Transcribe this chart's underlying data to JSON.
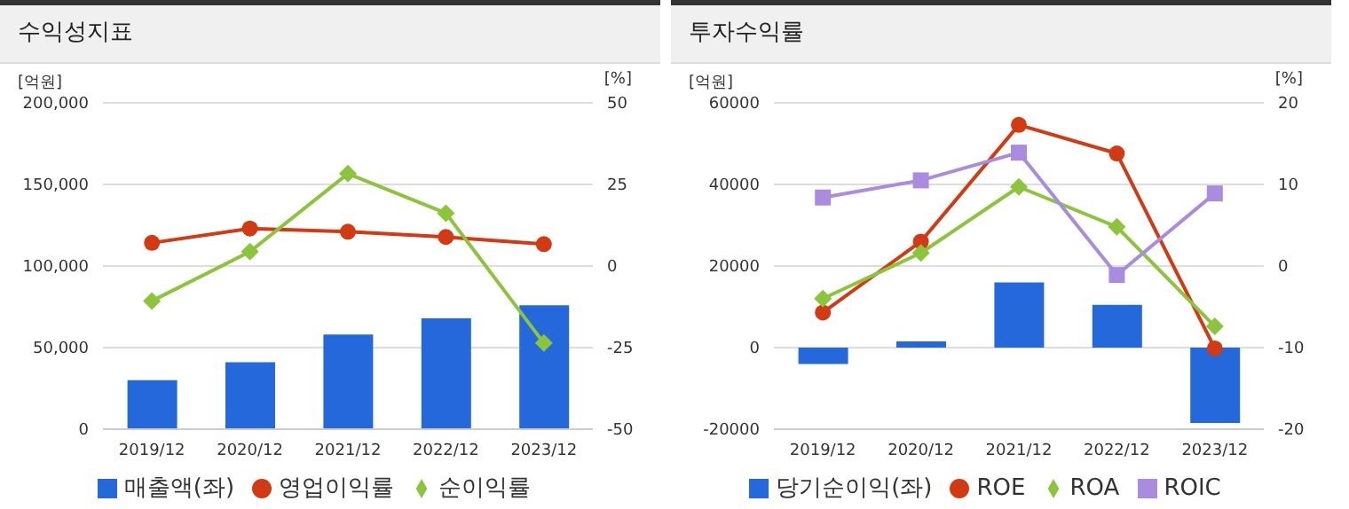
{
  "chart_data": [
    {
      "type": "bar",
      "title": "수익성지표",
      "ylabel": "[억원]",
      "y2label": "[%]",
      "categories": [
        "2019/12",
        "2020/12",
        "2021/12",
        "2022/12",
        "2023/12"
      ],
      "series": [
        {
          "name": "매출액(좌)",
          "color": "#2468dc",
          "values": [
            30000,
            41000,
            58000,
            68000,
            76000
          ]
        },
        {
          "name": "영업이익률",
          "type": "line",
          "axis": "y2",
          "marker": "circle",
          "color": "#d13a12",
          "values": [
            7.1,
            11.5,
            10.5,
            8.9,
            6.7
          ]
        },
        {
          "name": "순이익률",
          "type": "line",
          "axis": "y2",
          "marker": "diamond",
          "color": "#8cc43c",
          "values": [
            -10.7,
            4.4,
            28.3,
            16.2,
            -23.6
          ]
        }
      ],
      "ylim": [
        0,
        200000
      ],
      "yticks": [
        {
          "value": 0,
          "label": "0"
        },
        {
          "value": 50000,
          "label": "50,000"
        },
        {
          "value": 100000,
          "label": "100,000"
        },
        {
          "value": 150000,
          "label": "150,000"
        },
        {
          "value": 200000,
          "label": "200,000"
        }
      ],
      "y2lim": [
        -50,
        50
      ],
      "y2ticks": [
        -50,
        -25,
        0,
        25,
        50
      ],
      "grid": "y",
      "legend": "bottom"
    },
    {
      "type": "bar",
      "title": "투자수익률",
      "ylabel": "[억원]",
      "y2label": "[%]",
      "categories": [
        "2019/12",
        "2020/12",
        "2021/12",
        "2022/12",
        "2023/12"
      ],
      "series": [
        {
          "name": "당기순이익(좌)",
          "color": "#2468dc",
          "values": [
            -4000,
            1500,
            16000,
            10500,
            -18500
          ]
        },
        {
          "name": "ROE",
          "type": "line",
          "axis": "y2",
          "marker": "circle",
          "color": "#d13a12",
          "values": [
            -5.7,
            3.0,
            17.3,
            13.8,
            -10.1
          ]
        },
        {
          "name": "ROA",
          "type": "line",
          "axis": "y2",
          "marker": "diamond",
          "color": "#8cc43c",
          "values": [
            -4.0,
            1.6,
            9.7,
            4.8,
            -7.4
          ]
        },
        {
          "name": "ROIC",
          "type": "line",
          "axis": "y2",
          "marker": "square",
          "color": "#a98be0",
          "values": [
            8.4,
            10.5,
            13.9,
            -1.1,
            8.9
          ]
        }
      ],
      "ylim": [
        -20000,
        60000
      ],
      "yticks": [
        -20000,
        0,
        20000,
        40000,
        60000
      ],
      "y2lim": [
        -20,
        20
      ],
      "y2ticks": [
        -20,
        -10,
        0,
        10,
        20
      ],
      "grid": "y",
      "legend": "bottom"
    }
  ]
}
